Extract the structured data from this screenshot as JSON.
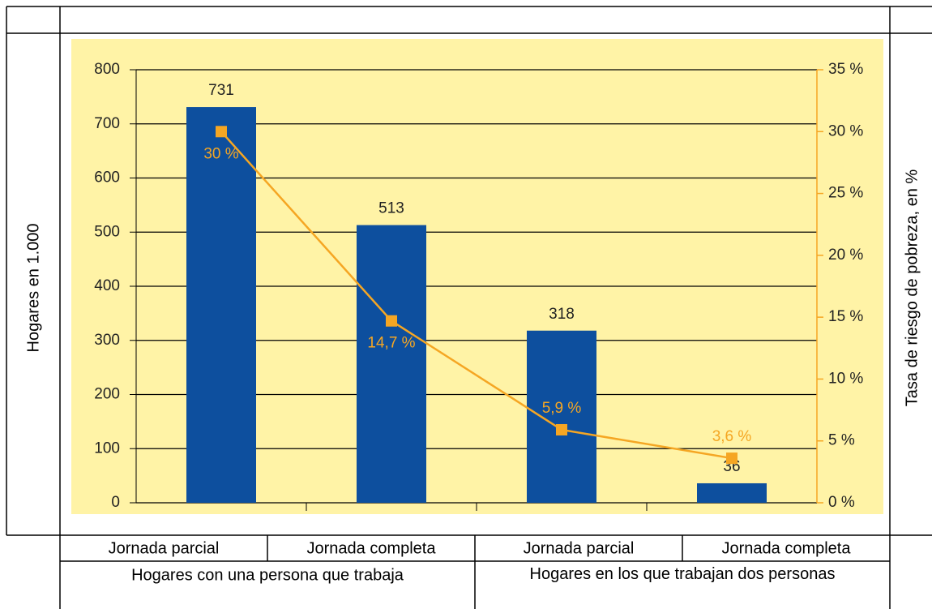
{
  "chart_data": {
    "type": "bar",
    "ylabel": "Hogares en 1.000",
    "y2label": "Tasa de riesgo de pobreza, en %",
    "categories": [
      "Jornada parcial",
      "Jornada completa",
      "Jornada parcial",
      "Jornada completa"
    ],
    "category_groups": [
      "Hogares con una persona que trabaja",
      "Hogares en los que trabajan dos personas"
    ],
    "series": [
      {
        "color": "#0d4f9e",
        "values": [
          731,
          513,
          318,
          36
        ]
      },
      {
        "type": "line",
        "axis": "y2",
        "color": "#f5a623",
        "values": [
          30,
          14.7,
          5.9,
          3.6
        ],
        "value_labels": [
          "30 %",
          "14,7 %",
          "5,9 %",
          "3,6 %"
        ]
      }
    ],
    "ylim": [
      0,
      800
    ],
    "yticks": [
      0,
      100,
      200,
      300,
      400,
      500,
      600,
      700,
      800
    ],
    "y2lim": [
      0,
      35
    ],
    "y2ticks": [
      {
        "value": 0,
        "label": "0 %"
      },
      {
        "value": 5,
        "label": "5 %"
      },
      {
        "value": 10,
        "label": "10 %"
      },
      {
        "value": 15,
        "label": "15 %"
      },
      {
        "value": 20,
        "label": "20 %"
      },
      {
        "value": 25,
        "label": "25 %"
      },
      {
        "value": 30,
        "label": "30 %"
      },
      {
        "value": 35,
        "label": "35 %"
      }
    ],
    "grid": true,
    "background": "#fff3a6"
  }
}
